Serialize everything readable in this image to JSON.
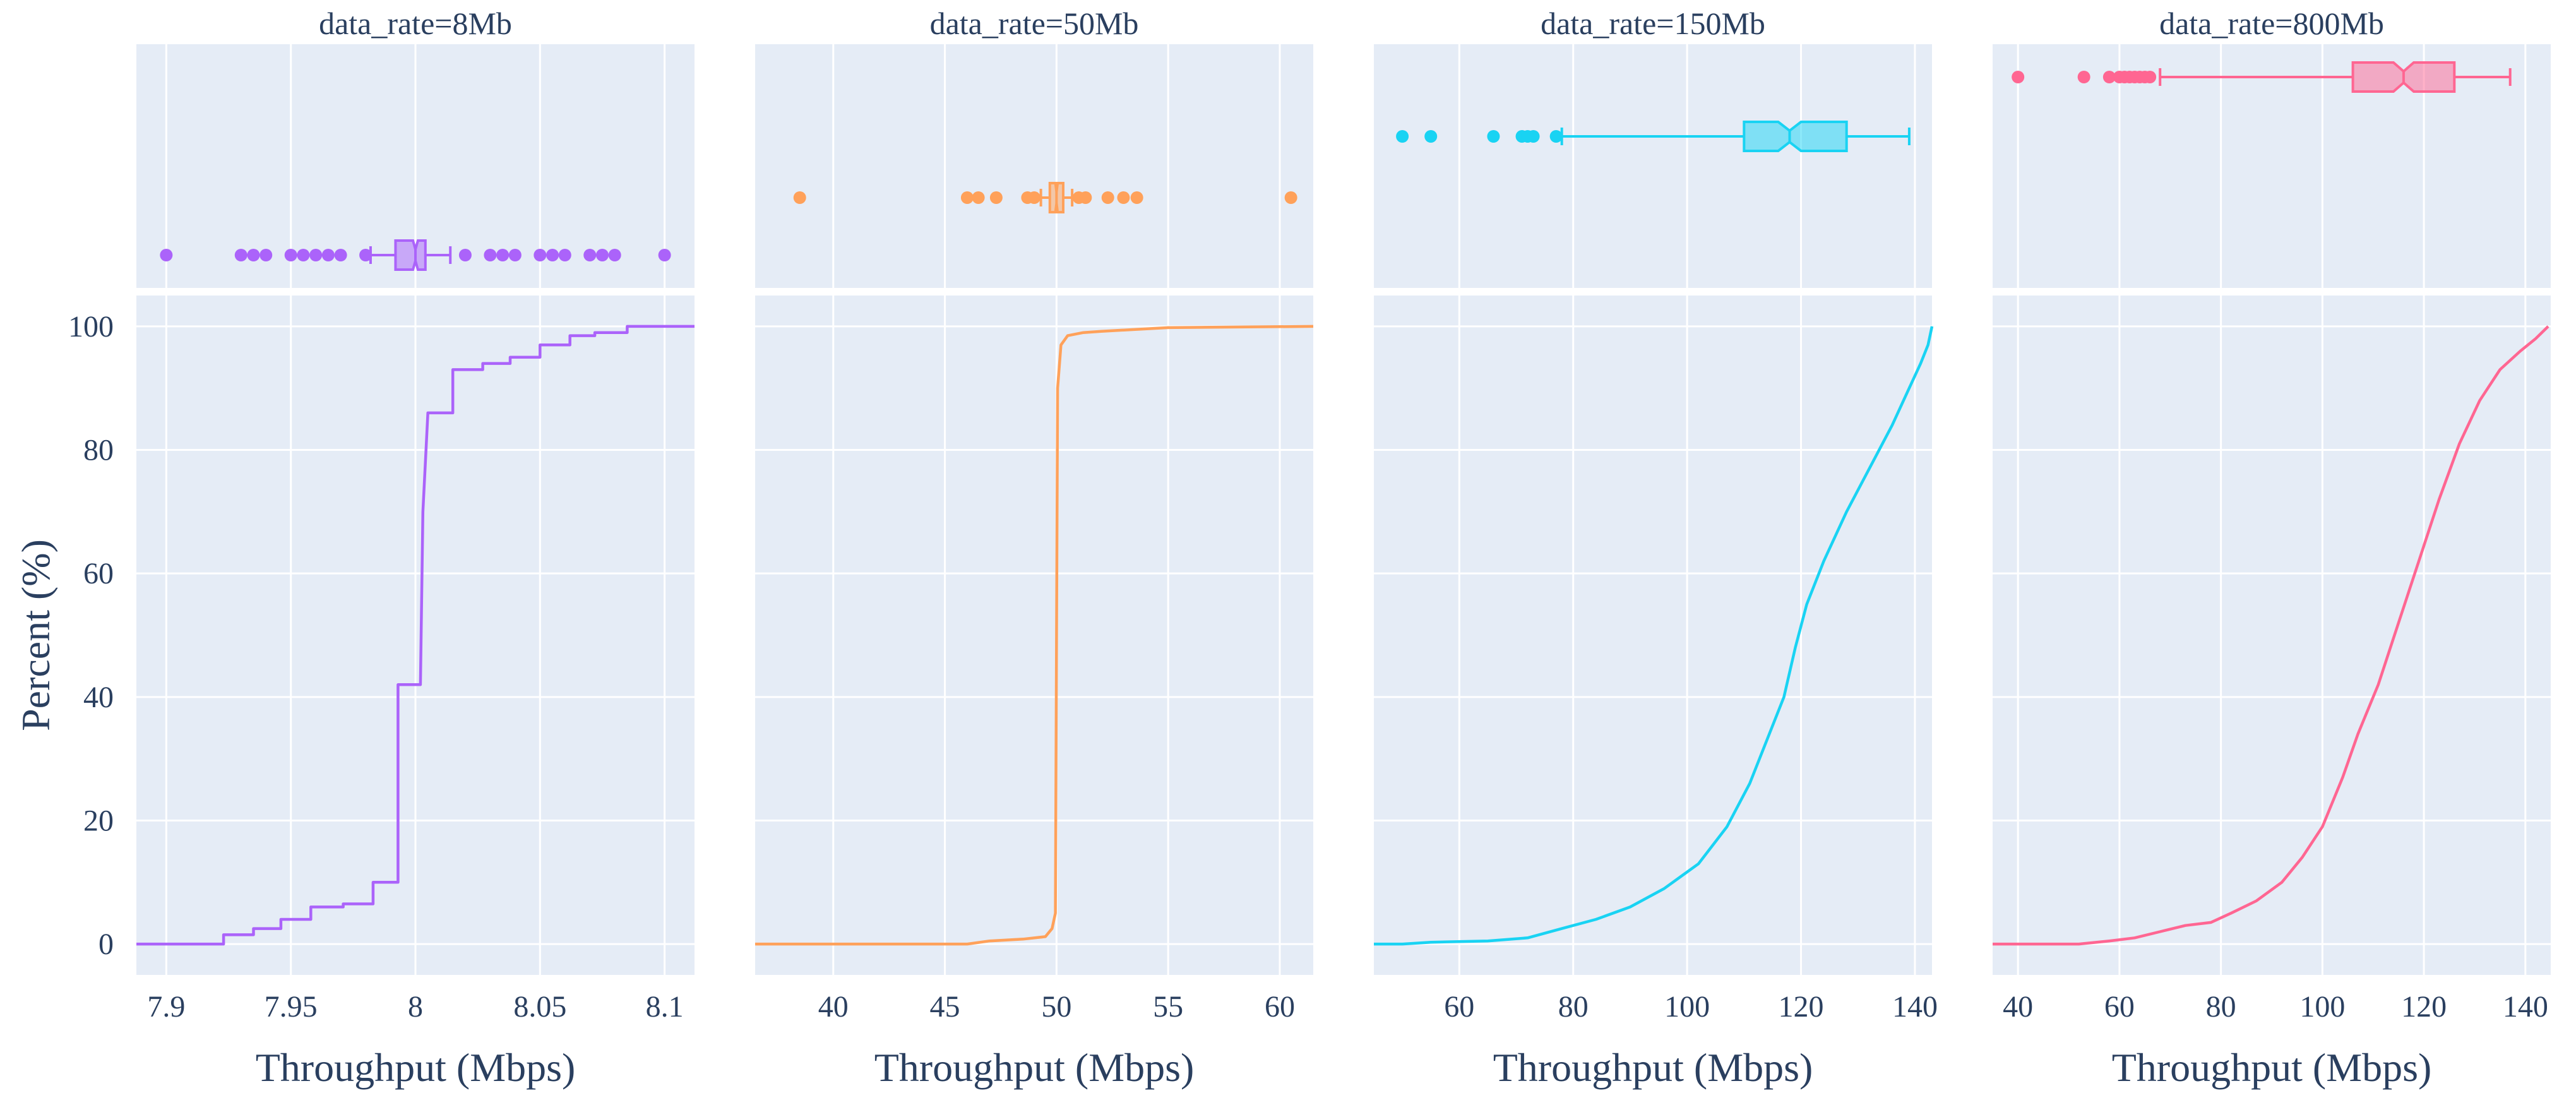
{
  "chart_data": {
    "type": "ecdf",
    "ylabel": "Percent (%)",
    "xlabel": "Throughput (Mbps)",
    "y_axis": {
      "range": [
        -5,
        105
      ],
      "ticks": [
        0,
        20,
        40,
        60,
        80,
        100
      ],
      "tick_labels": [
        "0",
        "20",
        "40",
        "60",
        "80",
        "100"
      ]
    },
    "colors": {
      "plot_bg": "#e5ecf6",
      "grid": "#ffffff",
      "text": "#2a3f5f"
    },
    "panels": [
      {
        "title": "data_rate=8Mb",
        "color": "#ab63fa",
        "xlim": [
          7.888,
          8.112
        ],
        "xticks": [
          7.9,
          7.95,
          8.0,
          8.05,
          8.1
        ],
        "xtick_labels": [
          "7.9",
          "7.95",
          "8",
          "8.05",
          "8.1"
        ],
        "box": {
          "q1": 7.992,
          "median": 8.0,
          "q3": 8.004,
          "lower_fence": 7.982,
          "upper_fence": 8.014,
          "notch_low": 7.999,
          "notch_high": 8.001,
          "outliers": [
            7.9,
            7.93,
            7.935,
            7.94,
            7.95,
            7.955,
            7.96,
            7.965,
            7.97,
            7.98,
            8.02,
            8.03,
            8.035,
            8.04,
            8.05,
            8.055,
            8.06,
            8.07,
            8.075,
            8.08,
            8.1
          ]
        },
        "ecdf": [
          [
            7.888,
            0
          ],
          [
            7.923,
            0
          ],
          [
            7.923,
            1.5
          ],
          [
            7.935,
            1.5
          ],
          [
            7.935,
            2.5
          ],
          [
            7.946,
            2.5
          ],
          [
            7.946,
            4
          ],
          [
            7.958,
            4
          ],
          [
            7.958,
            6
          ],
          [
            7.971,
            6
          ],
          [
            7.971,
            6.5
          ],
          [
            7.983,
            6.5
          ],
          [
            7.983,
            10
          ],
          [
            7.993,
            10
          ],
          [
            7.993,
            42
          ],
          [
            8.002,
            42
          ],
          [
            8.003,
            70
          ],
          [
            8.005,
            86
          ],
          [
            8.015,
            86
          ],
          [
            8.015,
            93
          ],
          [
            8.027,
            93
          ],
          [
            8.027,
            94
          ],
          [
            8.038,
            94
          ],
          [
            8.038,
            95
          ],
          [
            8.05,
            95
          ],
          [
            8.05,
            97
          ],
          [
            8.062,
            97
          ],
          [
            8.062,
            98.5
          ],
          [
            8.072,
            98.5
          ],
          [
            8.072,
            99
          ],
          [
            8.085,
            99
          ],
          [
            8.085,
            100
          ],
          [
            8.112,
            100
          ]
        ]
      },
      {
        "title": "data_rate=50Mb",
        "color": "#ffa15a",
        "xlim": [
          36.5,
          61.5
        ],
        "xticks": [
          40,
          45,
          50,
          55,
          60
        ],
        "xtick_labels": [
          "40",
          "45",
          "50",
          "55",
          "60"
        ],
        "box": {
          "q1": 49.7,
          "median": 50.0,
          "q3": 50.3,
          "lower_fence": 49.3,
          "upper_fence": 50.7,
          "notch_low": 49.95,
          "notch_high": 50.05,
          "outliers": [
            38.5,
            46.0,
            46.5,
            47.3,
            48.7,
            49.0,
            51.0,
            51.3,
            52.3,
            53.0,
            53.6,
            60.5
          ]
        },
        "ecdf": [
          [
            36.5,
            0
          ],
          [
            46,
            0
          ],
          [
            47,
            0.5
          ],
          [
            48.5,
            0.8
          ],
          [
            49.5,
            1.2
          ],
          [
            49.8,
            2.5
          ],
          [
            49.95,
            5
          ],
          [
            50.0,
            50
          ],
          [
            50.05,
            90
          ],
          [
            50.2,
            97
          ],
          [
            50.5,
            98.5
          ],
          [
            51.2,
            99
          ],
          [
            52,
            99.2
          ],
          [
            55,
            99.8
          ],
          [
            61.5,
            100
          ]
        ]
      },
      {
        "title": "data_rate=150Mb",
        "color": "#19d3f3",
        "xlim": [
          45,
          143
        ],
        "xticks": [
          60,
          80,
          100,
          120,
          140
        ],
        "xtick_labels": [
          "60",
          "80",
          "100",
          "120",
          "140"
        ],
        "box": {
          "q1": 110,
          "median": 118,
          "q3": 128,
          "lower_fence": 78,
          "upper_fence": 139,
          "notch_low": 116,
          "notch_high": 120,
          "outliers": [
            50,
            55,
            66,
            71,
            72,
            73,
            77
          ]
        },
        "ecdf": [
          [
            45,
            0
          ],
          [
            50,
            0
          ],
          [
            55,
            0.3
          ],
          [
            65,
            0.5
          ],
          [
            72,
            1
          ],
          [
            78,
            2.5
          ],
          [
            84,
            4
          ],
          [
            90,
            6
          ],
          [
            96,
            9
          ],
          [
            102,
            13
          ],
          [
            107,
            19
          ],
          [
            111,
            26
          ],
          [
            114,
            33
          ],
          [
            117,
            40
          ],
          [
            119,
            48
          ],
          [
            121,
            55
          ],
          [
            124,
            62
          ],
          [
            128,
            70
          ],
          [
            132,
            77
          ],
          [
            136,
            84
          ],
          [
            139,
            90
          ],
          [
            141,
            94
          ],
          [
            142.3,
            97
          ],
          [
            143,
            100
          ]
        ]
      },
      {
        "title": "data_rate=800Mb",
        "color": "#ff6692",
        "xlim": [
          35,
          145
        ],
        "xticks": [
          40,
          60,
          80,
          100,
          120,
          140
        ],
        "xtick_labels": [
          "40",
          "60",
          "80",
          "100",
          "120",
          "140"
        ],
        "box": {
          "q1": 106,
          "median": 116,
          "q3": 126,
          "lower_fence": 68,
          "upper_fence": 137,
          "notch_low": 114,
          "notch_high": 118,
          "outliers": [
            40,
            53,
            58,
            60,
            61,
            62,
            63,
            64,
            65,
            66
          ]
        },
        "ecdf": [
          [
            35,
            0
          ],
          [
            52,
            0
          ],
          [
            58,
            0.5
          ],
          [
            63,
            1
          ],
          [
            68,
            2
          ],
          [
            73,
            3
          ],
          [
            78,
            3.5
          ],
          [
            82,
            5
          ],
          [
            87,
            7
          ],
          [
            92,
            10
          ],
          [
            96,
            14
          ],
          [
            100,
            19
          ],
          [
            104,
            27
          ],
          [
            107,
            34
          ],
          [
            111,
            42
          ],
          [
            115,
            52
          ],
          [
            119,
            62
          ],
          [
            123,
            72
          ],
          [
            127,
            81
          ],
          [
            131,
            88
          ],
          [
            135,
            93
          ],
          [
            139,
            96
          ],
          [
            142,
            98
          ],
          [
            144.5,
            100
          ]
        ]
      }
    ]
  }
}
